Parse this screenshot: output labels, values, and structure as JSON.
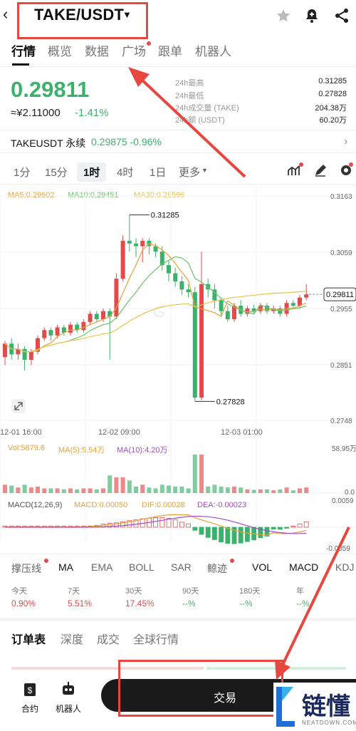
{
  "header": {
    "pair": "TAKE/USDT"
  },
  "tabs": [
    {
      "label": "行情"
    },
    {
      "label": "概览"
    },
    {
      "label": "数据"
    },
    {
      "label": "广场"
    },
    {
      "label": "跟单"
    },
    {
      "label": "机器人"
    }
  ],
  "ticker": {
    "price": "0.29811",
    "cny": "≈¥2.11000",
    "change": "-1.41%",
    "stats": [
      {
        "label": "24h最高",
        "value": "0.31285"
      },
      {
        "label": "24h最低",
        "value": "0.27828"
      },
      {
        "label": "24h成交量 (TAKE)",
        "value": "204.38万"
      },
      {
        "label": "24h额 (USDT)",
        "value": "60.20万"
      }
    ],
    "perp_name": "TAKEUSDT 永续",
    "perp_price": "0.29875 -0.96%"
  },
  "timeframes": [
    {
      "label": "1分"
    },
    {
      "label": "15分"
    },
    {
      "label": "1时"
    },
    {
      "label": "4时"
    },
    {
      "label": "1日"
    },
    {
      "label": "更多"
    }
  ],
  "ma_legend": {
    "ma5": "MA5:0.29602",
    "ma10": "MA10:0.29451",
    "ma30": "MA30:0.29596"
  },
  "vol_legend": {
    "vol": "Vol:5879.6",
    "ma5": "MA(5):5.54万",
    "ma10": "MA(10):4.20万"
  },
  "macd_legend": {
    "macd": "MACD(12,26,9)",
    "value": "MACD:0.00050",
    "dif": "DIF:0.00028",
    "dea": "DEA:-0.00023"
  },
  "indicators": [
    {
      "label": "撑压线"
    },
    {
      "label": "MA"
    },
    {
      "label": "EMA"
    },
    {
      "label": "BOLL"
    },
    {
      "label": "SAR"
    },
    {
      "label": "鲸迹"
    },
    {
      "label": "VOL"
    },
    {
      "label": "MACD"
    },
    {
      "label": "KDJ"
    }
  ],
  "performance": [
    {
      "label": "今天",
      "value": "0.90%"
    },
    {
      "label": "7天",
      "value": "5.51%"
    },
    {
      "label": "30天",
      "value": "17.45%"
    },
    {
      "label": "90天",
      "value": "--%"
    },
    {
      "label": "180天",
      "value": "--%"
    },
    {
      "label": "年",
      "value": "--%"
    }
  ],
  "orderbook_tabs": [
    {
      "label": "订单表"
    },
    {
      "label": "深度"
    },
    {
      "label": "成交"
    },
    {
      "label": "全球行情"
    }
  ],
  "bottom": {
    "contract": "合约",
    "robot": "机器人",
    "trade": "交易"
  },
  "watermark": {
    "brand": "链懂",
    "domain": "NEATDOWN.COM"
  },
  "colors": {
    "up": "#e24b4b",
    "down": "#3ab26c",
    "ma5": "#e8a13a",
    "ma10": "#6cc46a",
    "ma30": "#e8c44a",
    "accent": "#e8473f"
  },
  "chart_data": {
    "type": "candlestick",
    "y_axis_ticks": [
      "0.3163",
      "0.3059",
      "0.2955",
      "0.2851",
      "0.2748"
    ],
    "x_axis_ticks": [
      "12-01 16:00",
      "12-02 09:00",
      "12-03 01:00"
    ],
    "high_label": "0.31285",
    "low_label": "0.27828",
    "last_price_label": "0.29811",
    "vol_axis": [
      "58.95万",
      "0.0"
    ],
    "macd_axis": [
      "0.0059",
      "-0.0059"
    ],
    "candles": [
      [
        0.2865,
        0.289,
        0.285,
        0.2895
      ],
      [
        0.289,
        0.287,
        0.286,
        0.29
      ],
      [
        0.287,
        0.288,
        0.286,
        0.289
      ],
      [
        0.288,
        0.286,
        0.284,
        0.2885
      ],
      [
        0.286,
        0.2875,
        0.285,
        0.288
      ],
      [
        0.2875,
        0.29,
        0.287,
        0.2905
      ],
      [
        0.29,
        0.2915,
        0.2895,
        0.292
      ],
      [
        0.2915,
        0.2905,
        0.2895,
        0.292
      ],
      [
        0.2905,
        0.292,
        0.29,
        0.2925
      ],
      [
        0.292,
        0.291,
        0.2905,
        0.2925
      ],
      [
        0.291,
        0.2925,
        0.2905,
        0.293
      ],
      [
        0.2925,
        0.2915,
        0.291,
        0.293
      ],
      [
        0.2915,
        0.293,
        0.291,
        0.2935
      ],
      [
        0.293,
        0.2945,
        0.2925,
        0.295
      ],
      [
        0.2945,
        0.2935,
        0.293,
        0.295
      ],
      [
        0.2935,
        0.295,
        0.293,
        0.2955
      ],
      [
        0.295,
        0.294,
        0.286,
        0.2955
      ],
      [
        0.294,
        0.301,
        0.2935,
        0.302
      ],
      [
        0.301,
        0.308,
        0.3005,
        0.309
      ],
      [
        0.308,
        0.3075,
        0.306,
        0.3128
      ],
      [
        0.3075,
        0.307,
        0.305,
        0.3085
      ],
      [
        0.307,
        0.308,
        0.304,
        0.3085
      ],
      [
        0.308,
        0.307,
        0.3055,
        0.3085
      ],
      [
        0.307,
        0.306,
        0.305,
        0.3075
      ],
      [
        0.306,
        0.3035,
        0.3025,
        0.307
      ],
      [
        0.3035,
        0.302,
        0.3005,
        0.3045
      ],
      [
        0.302,
        0.3005,
        0.2995,
        0.303
      ],
      [
        0.3005,
        0.299,
        0.298,
        0.3015
      ],
      [
        0.299,
        0.2985,
        0.2975,
        0.3
      ],
      [
        0.2985,
        0.279,
        0.2783,
        0.2995
      ],
      [
        0.279,
        0.3,
        0.2785,
        0.306
      ],
      [
        0.3,
        0.299,
        0.2975,
        0.301
      ],
      [
        0.299,
        0.297,
        0.2955,
        0.3
      ],
      [
        0.297,
        0.295,
        0.294,
        0.2975
      ],
      [
        0.295,
        0.2935,
        0.293,
        0.296
      ],
      [
        0.2935,
        0.296,
        0.293,
        0.2965
      ],
      [
        0.296,
        0.2945,
        0.294,
        0.297
      ],
      [
        0.2945,
        0.2955,
        0.294,
        0.296
      ],
      [
        0.2955,
        0.295,
        0.2945,
        0.2962
      ],
      [
        0.295,
        0.296,
        0.2945,
        0.2965
      ],
      [
        0.296,
        0.295,
        0.2945,
        0.2965
      ],
      [
        0.295,
        0.2955,
        0.2945,
        0.296
      ],
      [
        0.2955,
        0.2945,
        0.294,
        0.296
      ],
      [
        0.2945,
        0.2965,
        0.294,
        0.297
      ],
      [
        0.2965,
        0.296,
        0.2955,
        0.297
      ],
      [
        0.296,
        0.2975,
        0.2955,
        0.298
      ],
      [
        0.2975,
        0.2981,
        0.297,
        0.3
      ]
    ]
  }
}
